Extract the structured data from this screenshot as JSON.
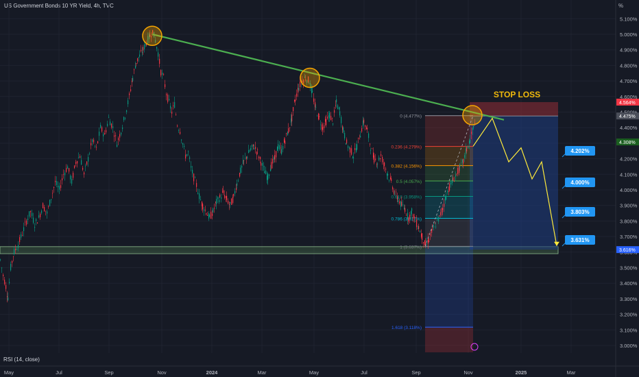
{
  "header": {
    "title": "US Government Bonds 10 YR Yield, 4h, TVC",
    "unit_button": "%"
  },
  "rsi_label": "RSI (14, close)",
  "colors": {
    "background": "#161a25",
    "trendline": "#4caf50",
    "projection": "#ffeb3b",
    "circle": "#f7a600",
    "stop_zone": "#7f2a33",
    "target_zone": "#1e3a7a",
    "support_zone": "#4c7a4c",
    "label_blue": "#2196f3",
    "stop_loss_text": "#f0b90b"
  },
  "chart_data": {
    "type": "candlestick",
    "yaxis": {
      "ticks": [
        "5.100%",
        "5.000%",
        "4.900%",
        "4.800%",
        "4.700%",
        "4.600%",
        "4.500%",
        "4.400%",
        "4.300%",
        "4.200%",
        "4.100%",
        "4.000%",
        "3.900%",
        "3.800%",
        "3.700%",
        "3.600%",
        "3.500%",
        "3.400%",
        "3.300%",
        "3.200%",
        "3.100%",
        "3.000%"
      ],
      "range": [
        2.96,
        5.13
      ]
    },
    "xaxis": {
      "ticks": [
        "May",
        "Jul",
        "Sep",
        "Nov",
        "2024",
        "Mar",
        "May",
        "Jul",
        "Sep",
        "Nov",
        "2025",
        "Mar"
      ]
    },
    "price_path": [
      [
        0,
        3.55
      ],
      [
        4,
        3.45
      ],
      [
        8,
        3.38
      ],
      [
        11,
        3.31
      ],
      [
        15,
        3.5
      ],
      [
        20,
        3.6
      ],
      [
        26,
        3.65
      ],
      [
        32,
        3.72
      ],
      [
        38,
        3.8
      ],
      [
        44,
        3.86
      ],
      [
        50,
        3.78
      ],
      [
        56,
        3.82
      ],
      [
        62,
        3.9
      ],
      [
        68,
        3.85
      ],
      [
        74,
        3.95
      ],
      [
        80,
        4.05
      ],
      [
        86,
        4.0
      ],
      [
        92,
        4.1
      ],
      [
        98,
        4.15
      ],
      [
        104,
        4.05
      ],
      [
        110,
        4.18
      ],
      [
        116,
        4.22
      ],
      [
        122,
        4.1
      ],
      [
        128,
        4.2
      ],
      [
        134,
        4.32
      ],
      [
        140,
        4.26
      ],
      [
        146,
        4.4
      ],
      [
        152,
        4.35
      ],
      [
        158,
        4.46
      ],
      [
        164,
        4.4
      ],
      [
        170,
        4.3
      ],
      [
        176,
        4.38
      ],
      [
        182,
        4.48
      ],
      [
        188,
        4.6
      ],
      [
        193,
        4.72
      ],
      [
        198,
        4.82
      ],
      [
        203,
        4.86
      ],
      [
        208,
        4.9
      ],
      [
        213,
        4.95
      ],
      [
        218,
        4.99
      ],
      [
        222,
        5.02
      ],
      [
        226,
        4.96
      ],
      [
        230,
        4.88
      ],
      [
        234,
        4.76
      ],
      [
        238,
        4.72
      ],
      [
        242,
        4.62
      ],
      [
        246,
        4.56
      ],
      [
        250,
        4.5
      ],
      [
        254,
        4.55
      ],
      [
        258,
        4.42
      ],
      [
        262,
        4.38
      ],
      [
        266,
        4.3
      ],
      [
        270,
        4.22
      ],
      [
        274,
        4.24
      ],
      [
        278,
        4.14
      ],
      [
        282,
        4.08
      ],
      [
        286,
        4.03
      ],
      [
        290,
        3.96
      ],
      [
        295,
        3.9
      ],
      [
        300,
        3.86
      ],
      [
        305,
        3.82
      ],
      [
        310,
        3.86
      ],
      [
        315,
        3.92
      ],
      [
        320,
        3.95
      ],
      [
        325,
        3.98
      ],
      [
        330,
        3.94
      ],
      [
        335,
        3.9
      ],
      [
        340,
        3.95
      ],
      [
        345,
        4.04
      ],
      [
        350,
        4.12
      ],
      [
        355,
        4.18
      ],
      [
        360,
        4.22
      ],
      [
        365,
        4.26
      ],
      [
        370,
        4.28
      ],
      [
        375,
        4.24
      ],
      [
        380,
        4.18
      ],
      [
        385,
        4.12
      ],
      [
        390,
        4.08
      ],
      [
        395,
        4.16
      ],
      [
        400,
        4.2
      ],
      [
        405,
        4.28
      ],
      [
        410,
        4.25
      ],
      [
        415,
        4.32
      ],
      [
        420,
        4.38
      ],
      [
        425,
        4.46
      ],
      [
        430,
        4.58
      ],
      [
        435,
        4.66
      ],
      [
        440,
        4.7
      ],
      [
        445,
        4.72
      ],
      [
        450,
        4.7
      ],
      [
        455,
        4.62
      ],
      [
        460,
        4.52
      ],
      [
        465,
        4.46
      ],
      [
        470,
        4.4
      ],
      [
        475,
        4.44
      ],
      [
        480,
        4.48
      ],
      [
        485,
        4.44
      ],
      [
        490,
        4.56
      ],
      [
        495,
        4.5
      ],
      [
        500,
        4.38
      ],
      [
        505,
        4.3
      ],
      [
        510,
        4.26
      ],
      [
        515,
        4.22
      ],
      [
        520,
        4.28
      ],
      [
        525,
        4.36
      ],
      [
        530,
        4.44
      ],
      [
        535,
        4.38
      ],
      [
        540,
        4.28
      ],
      [
        545,
        4.2
      ],
      [
        550,
        4.18
      ],
      [
        555,
        4.22
      ],
      [
        560,
        4.16
      ],
      [
        565,
        4.1
      ],
      [
        570,
        4.05
      ],
      [
        575,
        3.98
      ],
      [
        580,
        3.94
      ],
      [
        585,
        3.9
      ],
      [
        590,
        3.88
      ],
      [
        595,
        3.82
      ],
      [
        600,
        3.86
      ],
      [
        605,
        3.8
      ],
      [
        610,
        3.76
      ],
      [
        615,
        3.7
      ],
      [
        620,
        3.64
      ],
      [
        625,
        3.68
      ],
      [
        630,
        3.74
      ],
      [
        635,
        3.78
      ],
      [
        640,
        3.82
      ],
      [
        645,
        3.88
      ],
      [
        650,
        3.96
      ],
      [
        655,
        4.02
      ],
      [
        660,
        4.06
      ],
      [
        665,
        4.1
      ],
      [
        670,
        4.14
      ],
      [
        675,
        4.18
      ],
      [
        680,
        4.26
      ],
      [
        685,
        4.32
      ],
      [
        690,
        4.4
      ],
      [
        693,
        4.46
      ]
    ],
    "trendline": {
      "from": [
        222,
        5.0
      ],
      "to": [
        735,
        4.45
      ]
    },
    "touch_circles": [
      [
        222,
        4.99
      ],
      [
        452,
        4.72
      ],
      [
        689,
        4.48
      ]
    ],
    "fib": {
      "x_from": 620,
      "x_to": 690,
      "levels": [
        {
          "label": "0 (4.477%)",
          "value": 4.477,
          "color": "#9598a1"
        },
        {
          "label": "0.236 (4.279%)",
          "value": 4.279,
          "color": "#f44336"
        },
        {
          "label": "0.382 (4.156%)",
          "value": 4.156,
          "color": "#ff9800"
        },
        {
          "label": "0.5 (4.057%)",
          "value": 4.057,
          "color": "#4caf50"
        },
        {
          "label": "0.618 (3.958%)",
          "value": 3.958,
          "color": "#089981"
        },
        {
          "label": "0.786 (3.817%)",
          "value": 3.817,
          "color": "#00bcd4"
        },
        {
          "label": "1 (3.637%)",
          "value": 3.637,
          "color": "#787b86"
        },
        {
          "label": "1.618 (3.118%)",
          "value": 3.118,
          "color": "#2962ff"
        }
      ]
    },
    "position": {
      "x_from": 685,
      "x_to": 814,
      "entry": 4.475,
      "stop": 4.564,
      "target": 3.616
    },
    "projection_path": [
      [
        690,
        4.28
      ],
      [
        718,
        4.46
      ],
      [
        742,
        4.18
      ],
      [
        760,
        4.27
      ],
      [
        776,
        4.07
      ],
      [
        790,
        4.18
      ],
      [
        812,
        3.64
      ]
    ],
    "targets": [
      {
        "label": "4.202%",
        "value": 4.202
      },
      {
        "label": "4.000%",
        "value": 4.0
      },
      {
        "label": "3.803%",
        "value": 3.803
      },
      {
        "label": "3.631%",
        "value": 3.631
      }
    ],
    "stop_loss_label": "STOP LOSS",
    "support_zone": {
      "x_from": 0,
      "x_to": 814,
      "top": 3.635,
      "bottom": 3.59
    },
    "price_labels": [
      {
        "label": "4.564%",
        "value": 4.564,
        "color": "#f23645"
      },
      {
        "label": "4.475%",
        "value": 4.475,
        "color": "#4a4e59"
      },
      {
        "label": "4.308%",
        "value": 4.308,
        "color": "#1b5e20"
      },
      {
        "label": "3.616%",
        "value": 3.616,
        "color": "#2962ff"
      }
    ]
  }
}
